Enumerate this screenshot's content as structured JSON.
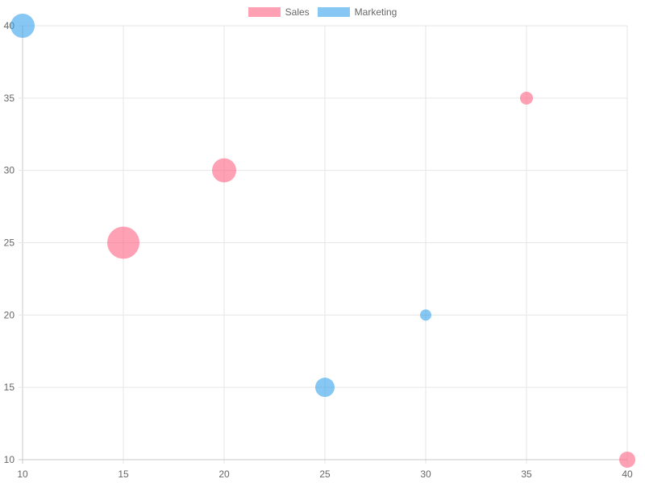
{
  "legend": [
    {
      "label": "Sales",
      "fill": "#ff6384",
      "border": "#ff9fb2"
    },
    {
      "label": "Marketing",
      "fill": "#36a2eb",
      "border": "#86c7f3"
    }
  ],
  "chart_data": {
    "type": "bubble",
    "title": "",
    "xlabel": "",
    "ylabel": "",
    "xlim": [
      10,
      40
    ],
    "ylim": [
      10,
      40
    ],
    "x_ticks": [
      10,
      15,
      20,
      25,
      30,
      35,
      40
    ],
    "y_ticks": [
      10,
      15,
      20,
      25,
      30,
      35,
      40
    ],
    "grid": true,
    "legend_position": "top",
    "series": [
      {
        "name": "Sales",
        "color": "#ff6384",
        "points": [
          {
            "x": 15,
            "y": 25,
            "r": 20
          },
          {
            "x": 20,
            "y": 30,
            "r": 15
          },
          {
            "x": 35,
            "y": 35,
            "r": 8
          },
          {
            "x": 40,
            "y": 10,
            "r": 10
          }
        ]
      },
      {
        "name": "Marketing",
        "color": "#36a2eb",
        "points": [
          {
            "x": 10,
            "y": 40,
            "r": 15
          },
          {
            "x": 25,
            "y": 15,
            "r": 12
          },
          {
            "x": 30,
            "y": 20,
            "r": 7
          }
        ]
      }
    ]
  }
}
